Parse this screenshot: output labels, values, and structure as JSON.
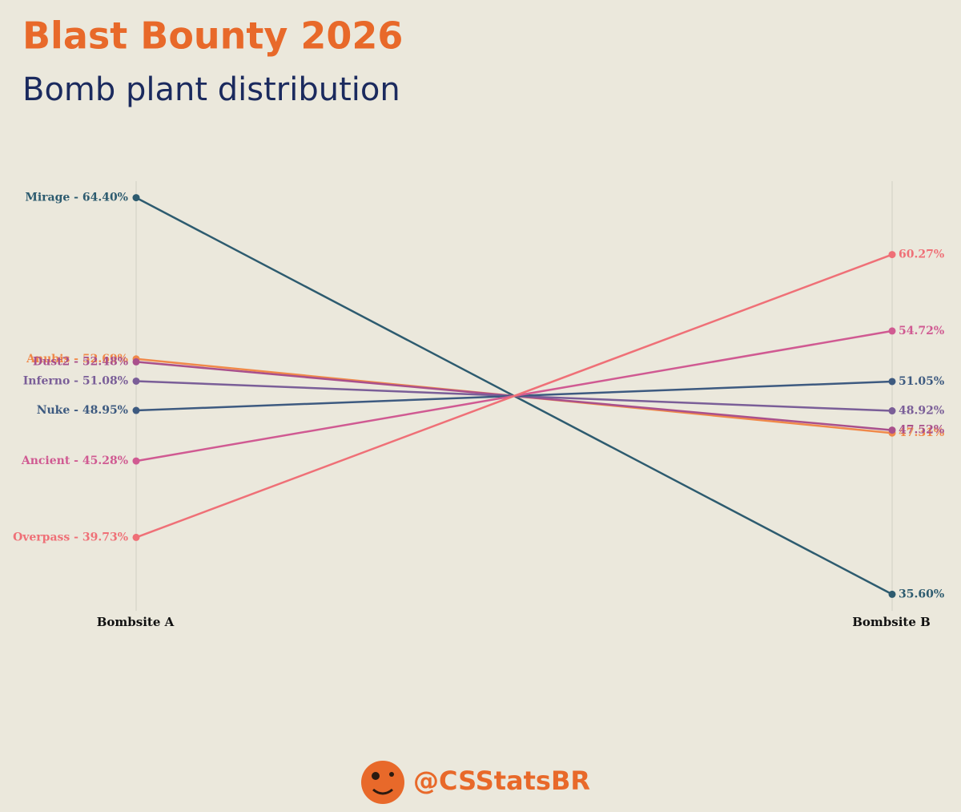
{
  "chart_data": {
    "type": "slope",
    "title": "Blast Bounty 2026",
    "subtitle": "Bomb plant distribution",
    "categories": [
      "Bombsite A",
      "Bombsite B"
    ],
    "ylim": [
      34.4,
      65.6
    ],
    "series": [
      {
        "name": "Mirage",
        "color": "#2d5b6f",
        "values": [
          64.4,
          35.6
        ],
        "value_labels": [
          "Mirage - 64.40%",
          "35.60%"
        ]
      },
      {
        "name": "Anubis",
        "color": "#f0894a",
        "values": [
          52.69,
          47.31
        ],
        "value_labels": [
          "Anubis - 52.69%",
          "47.31%"
        ]
      },
      {
        "name": "Dust2",
        "color": "#a9508c",
        "values": [
          52.48,
          47.52
        ],
        "value_labels": [
          "Dust2 - 52.48%",
          "47.52%"
        ]
      },
      {
        "name": "Inferno",
        "color": "#7a5e98",
        "values": [
          51.08,
          48.92
        ],
        "value_labels": [
          "Inferno - 51.08%",
          "48.92%"
        ]
      },
      {
        "name": "Nuke",
        "color": "#3d5a80",
        "values": [
          48.95,
          51.05
        ],
        "value_labels": [
          "Nuke - 48.95%",
          "51.05%"
        ]
      },
      {
        "name": "Ancient",
        "color": "#d05a92",
        "values": [
          45.28,
          54.72
        ],
        "value_labels": [
          "Ancient - 45.28%",
          "54.72%"
        ]
      },
      {
        "name": "Overpass",
        "color": "#ef7077",
        "values": [
          39.73,
          60.27
        ],
        "value_labels": [
          "Overpass - 39.73%",
          "60.27%"
        ]
      }
    ]
  },
  "footer": {
    "handle": "@CSStatsBR"
  }
}
